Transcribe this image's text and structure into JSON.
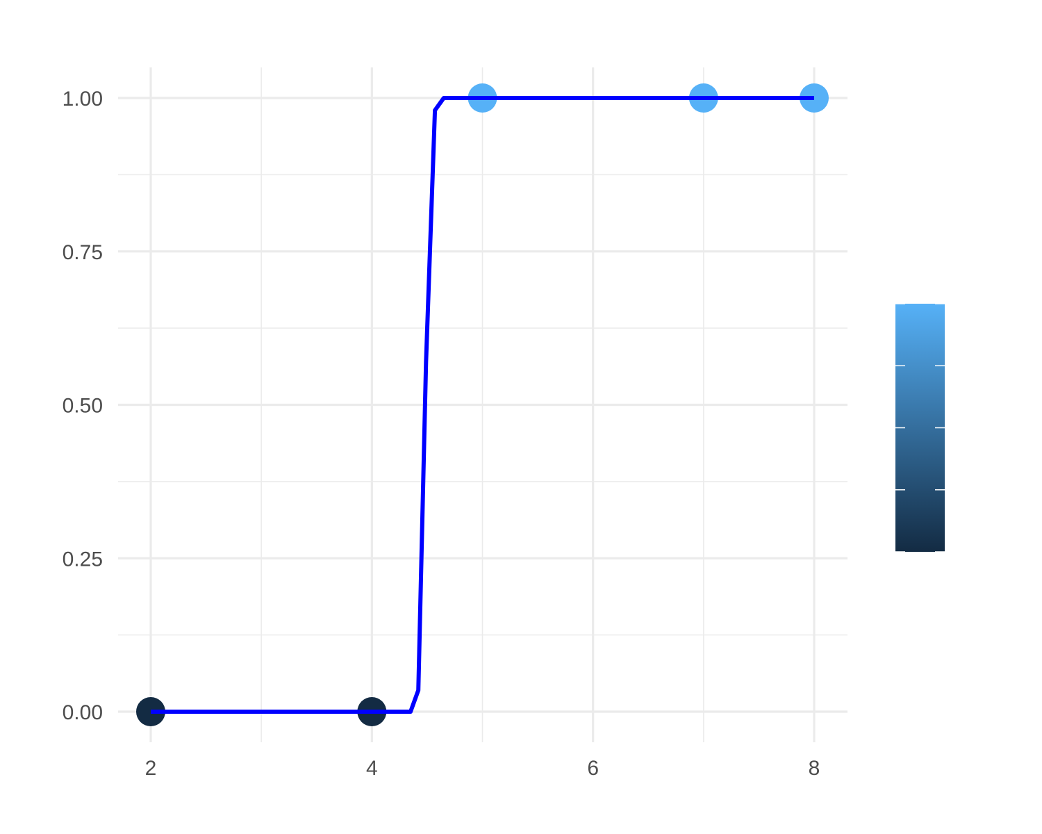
{
  "chart_data": {
    "type": "line",
    "title": "",
    "xlabel": "",
    "ylabel": "",
    "xlim": [
      1.85,
      8.3
    ],
    "ylim": [
      -0.05,
      1.05
    ],
    "x_ticks": [
      2,
      4,
      6,
      8
    ],
    "x_minor_ticks": [
      3,
      5,
      7
    ],
    "y_ticks": [
      0,
      0.25,
      0.5,
      0.75,
      1
    ],
    "y_tick_labels": [
      "0.00",
      "0.25",
      "0.50",
      "0.75",
      "1.00"
    ],
    "y_minor_ticks": [
      0.125,
      0.375,
      0.625,
      0.875
    ],
    "grid": true,
    "series": [
      {
        "type": "scatter",
        "color_scale": [
          "#132B43",
          "#56B1F7"
        ],
        "points": [
          {
            "x": 2,
            "y": 0,
            "color": "#132B43"
          },
          {
            "x": 4,
            "y": 0,
            "color": "#132B43"
          },
          {
            "x": 5,
            "y": 1,
            "color": "#56B1F7"
          },
          {
            "x": 7,
            "y": 1,
            "color": "#56B1F7"
          },
          {
            "x": 8,
            "y": 1,
            "color": "#56B1F7"
          }
        ]
      },
      {
        "type": "line",
        "color": "#0000FF",
        "points": [
          [
            2,
            0
          ],
          [
            4.35,
            0
          ],
          [
            4.42,
            0.035
          ],
          [
            4.49,
            0.57
          ],
          [
            4.57,
            0.98
          ],
          [
            4.65,
            1
          ],
          [
            5,
            1
          ],
          [
            6,
            1
          ],
          [
            7,
            1
          ],
          [
            8,
            1
          ]
        ]
      }
    ],
    "legend": {
      "type": "colorbar",
      "placement": "right",
      "colors": [
        "#132B43",
        "#56B1F7"
      ],
      "ticks": [
        0.25,
        0.5,
        0.75
      ]
    }
  }
}
